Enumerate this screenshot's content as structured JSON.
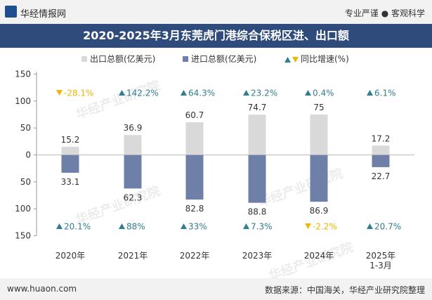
{
  "header": {
    "brand": "华经情报网",
    "slogan": "专业严谨 ● 客观科学",
    "title": "2020-2025年3月东莞虎门港综合保税区进、出口额"
  },
  "footer": {
    "site": "www.huaon.com",
    "source": "数据来源：中国海关，华经产业研究院整理"
  },
  "watermark": "华经产业研究院",
  "colors": {
    "export_bar": "#d9d9d9",
    "import_bar": "#6f80a8",
    "growth_up": "#2f7e8c",
    "growth_down": "#f2b500",
    "title_bg": "#2f4b7c"
  },
  "chart_data": {
    "type": "bar",
    "categories": [
      "2020年",
      "2021年",
      "2022年",
      "2023年",
      "2024年",
      "2025年\n1-3月"
    ],
    "series": [
      {
        "name": "出口总额(亿美元)",
        "values": [
          15.2,
          36.9,
          60.7,
          74.7,
          75,
          17.2
        ]
      },
      {
        "name": "进口总额(亿美元)",
        "values": [
          33.1,
          62.3,
          82.8,
          88.8,
          86.9,
          22.7
        ]
      }
    ],
    "growth_legend": "同比增速(%)",
    "export_growth": [
      {
        "dir": "down",
        "label": "-28.1%"
      },
      {
        "dir": "up",
        "label": "142.2%"
      },
      {
        "dir": "up",
        "label": "64.3%"
      },
      {
        "dir": "up",
        "label": "23.2%"
      },
      {
        "dir": "up",
        "label": "0.4%"
      },
      {
        "dir": "up",
        "label": "6.1%"
      }
    ],
    "import_growth": [
      {
        "dir": "up",
        "label": "20.1%"
      },
      {
        "dir": "up",
        "label": "88%"
      },
      {
        "dir": "up",
        "label": "33%"
      },
      {
        "dir": "up",
        "label": "7.3%"
      },
      {
        "dir": "down",
        "label": "-2.2%"
      },
      {
        "dir": "up",
        "label": "20.7%"
      }
    ],
    "y_ticks": [
      150,
      100,
      50,
      0,
      50,
      100,
      150
    ],
    "ylim": [
      -150,
      150
    ],
    "legend_position": "top-center",
    "grid": false
  }
}
